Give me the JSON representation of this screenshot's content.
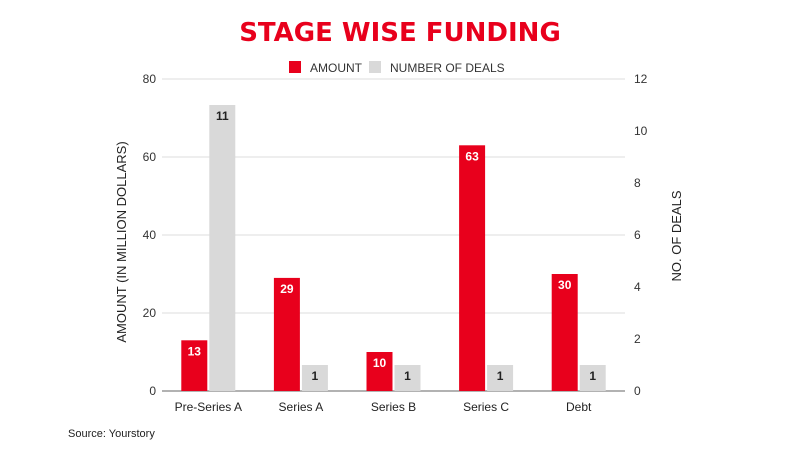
{
  "chart_data": {
    "type": "bar",
    "title": "STAGE WISE FUNDING",
    "categories": [
      "Pre-Series A",
      "Series A",
      "Series B",
      "Series C",
      "Debt"
    ],
    "series": [
      {
        "name": "AMOUNT",
        "axis": "left",
        "color": "#e8001c",
        "values": [
          13,
          29,
          10,
          63,
          30
        ]
      },
      {
        "name": "NUMBER OF DEALS",
        "axis": "right",
        "color": "#d9d9d9",
        "values": [
          11,
          1,
          1,
          1,
          1
        ]
      }
    ],
    "ylabel": "AMOUNT (IN MILLION DOLLARS)",
    "ylabel_right": "NO. OF DEALS",
    "ylim": [
      0,
      80
    ],
    "ylim_right": [
      0,
      12
    ],
    "yticks": [
      0,
      20,
      40,
      60,
      80
    ],
    "yticks_right": [
      0,
      2,
      4,
      6,
      8,
      10,
      12
    ],
    "grid": true,
    "legend": "top-center"
  },
  "source": "Source: Yourstory"
}
